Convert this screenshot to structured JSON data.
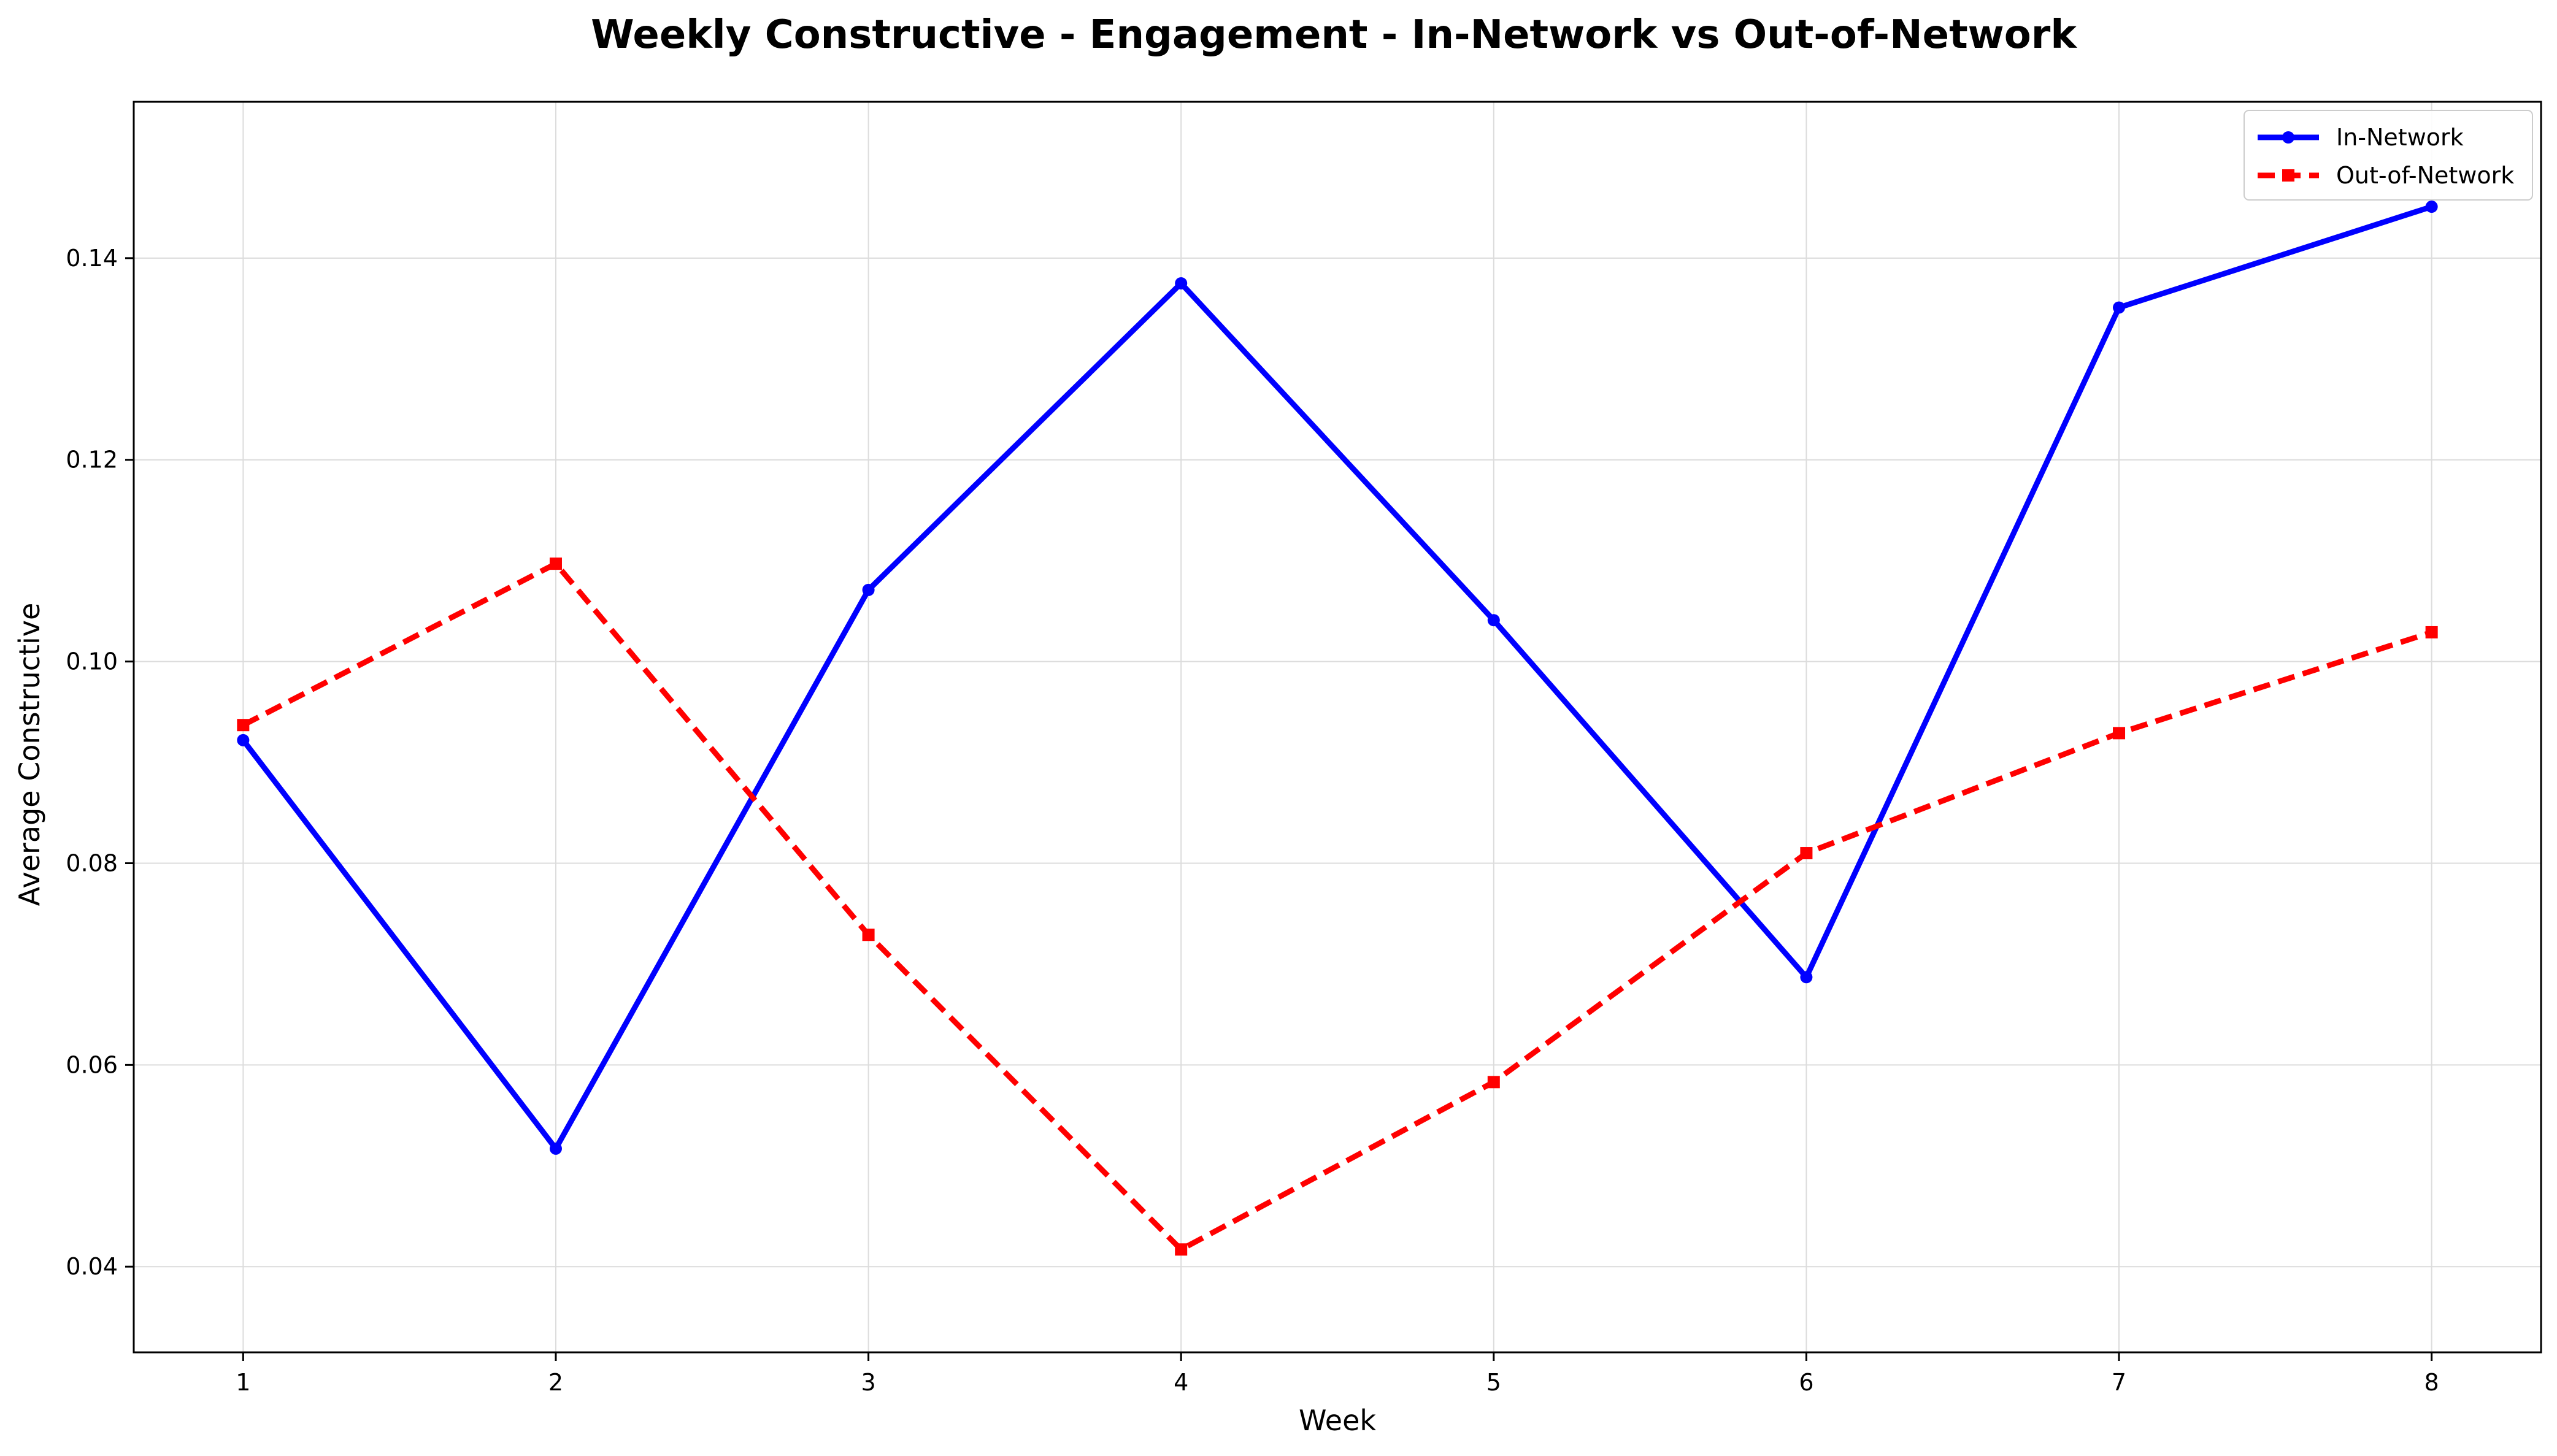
{
  "chart_data": {
    "type": "line",
    "title": "Weekly Constructive - Engagement - In-Network vs Out-of-Network",
    "xlabel": "Week",
    "ylabel": "Average Constructive",
    "x": [
      1,
      2,
      3,
      4,
      5,
      6,
      7,
      8
    ],
    "xlim": [
      0.65,
      8.35
    ],
    "ylim": [
      0.0315,
      0.1555
    ],
    "xticks": [
      "1",
      "2",
      "3",
      "4",
      "5",
      "6",
      "7",
      "8"
    ],
    "yticks": [
      "0.04",
      "0.06",
      "0.08",
      "0.10",
      "0.12",
      "0.14"
    ],
    "grid": true,
    "legend_position": "top-right",
    "series": [
      {
        "name": "In-Network",
        "color": "#0000ff",
        "line_style": "solid",
        "marker": "circle",
        "values": [
          0.0922,
          0.0517,
          0.1071,
          0.1375,
          0.1041,
          0.0687,
          0.1351,
          0.1451
        ]
      },
      {
        "name": "Out-of-Network",
        "color": "#ff0000",
        "line_style": "dashed",
        "marker": "square",
        "values": [
          0.0937,
          0.1097,
          0.0729,
          0.0417,
          0.0583,
          0.081,
          0.0929,
          0.1029
        ]
      }
    ]
  }
}
